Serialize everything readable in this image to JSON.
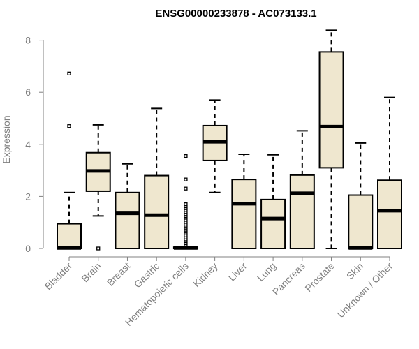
{
  "chart_data": {
    "type": "box",
    "title": "ENSG00000233878 - AC073133.1",
    "xlabel": "",
    "ylabel": "Expression",
    "ylim": [
      0,
      8.4
    ],
    "yticks": [
      0,
      2,
      4,
      6,
      8
    ],
    "grid": false,
    "box_fill": "#efe7cf",
    "categories": [
      "Bladder",
      "Brain",
      "Breast",
      "Gastric",
      "Hematopoietic cells",
      "Kidney",
      "Liver",
      "Lung",
      "Pancreas",
      "Prostate",
      "Skin",
      "Unknown / Other"
    ],
    "boxes": [
      {
        "min": 0,
        "q1": 0,
        "median": 0.02,
        "q3": 0.95,
        "max": 2.15,
        "outliers": [
          4.7,
          6.72
        ]
      },
      {
        "min": 1.25,
        "q1": 2.2,
        "median": 2.98,
        "q3": 3.68,
        "max": 4.75,
        "outliers": [
          0.0
        ]
      },
      {
        "min": 0,
        "q1": 0,
        "median": 1.35,
        "q3": 2.15,
        "max": 3.25,
        "outliers": []
      },
      {
        "min": 0,
        "q1": 0,
        "median": 1.28,
        "q3": 2.8,
        "max": 5.38,
        "outliers": []
      },
      {
        "min": 0,
        "q1": 0,
        "median": 0.02,
        "q3": 0.05,
        "max": 0.08,
        "outliers": [
          0.12,
          0.2,
          0.28,
          0.35,
          0.42,
          0.5,
          0.58,
          0.65,
          0.72,
          0.8,
          0.88,
          0.95,
          1.02,
          1.1,
          1.18,
          1.25,
          1.32,
          1.4,
          1.48,
          1.55,
          1.62,
          1.7,
          2.3,
          2.65,
          3.55
        ]
      },
      {
        "min": 2.15,
        "q1": 3.38,
        "median": 4.1,
        "q3": 4.72,
        "max": 5.7,
        "outliers": []
      },
      {
        "min": 0,
        "q1": 0,
        "median": 1.72,
        "q3": 2.65,
        "max": 3.62,
        "outliers": []
      },
      {
        "min": 0,
        "q1": 0,
        "median": 1.15,
        "q3": 1.88,
        "max": 3.6,
        "outliers": []
      },
      {
        "min": 0,
        "q1": 0,
        "median": 2.12,
        "q3": 2.82,
        "max": 4.52,
        "outliers": []
      },
      {
        "min": 0,
        "q1": 3.1,
        "median": 4.68,
        "q3": 7.55,
        "max": 8.38,
        "outliers": []
      },
      {
        "min": 0,
        "q1": 0,
        "median": 0.02,
        "q3": 2.05,
        "max": 4.05,
        "outliers": []
      },
      {
        "min": 0,
        "q1": 0,
        "median": 1.45,
        "q3": 2.62,
        "max": 5.8,
        "outliers": []
      }
    ]
  }
}
